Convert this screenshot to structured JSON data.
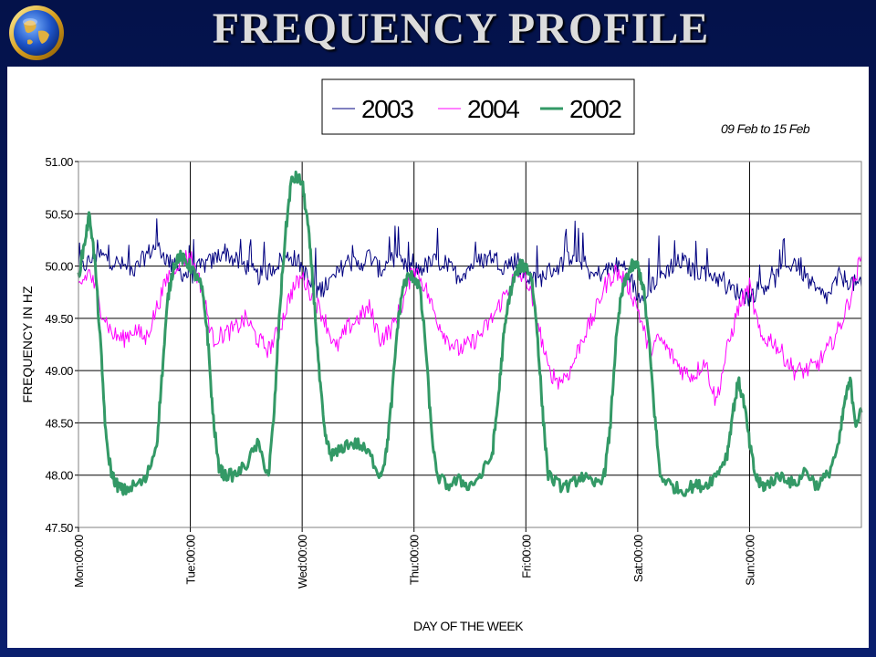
{
  "slide": {
    "title": "FREQUENCY PROFILE",
    "logo_icon": "globe-icon"
  },
  "chart_data": {
    "type": "line",
    "title": "",
    "subtitle": "09 Feb to 15 Feb",
    "xlabel": "DAY OF THE WEEK",
    "ylabel": "FREQUENCY IN HZ",
    "ylim": [
      47.5,
      51.0
    ],
    "yticks": [
      "47.50",
      "48.00",
      "48.50",
      "49.00",
      "49.50",
      "50.00",
      "50.50",
      "51.00"
    ],
    "xlim": [
      0,
      7
    ],
    "xtick_labels": [
      "Mon:00:00",
      "Tue:00:00",
      "Wed:00:00",
      "Thu:00:00",
      "Fri:00:00",
      "Sat:00:00",
      "Sun:00:00"
    ],
    "grid": true,
    "legend_position": "top-center",
    "x_unit": "days since Mon 00:00",
    "series": [
      {
        "name": "2003",
        "color": "#000080",
        "line_width": 1,
        "x": [
          0,
          0.1,
          0.2,
          0.3,
          0.4,
          0.5,
          0.6,
          0.7,
          0.8,
          0.9,
          1.0,
          1.1,
          1.2,
          1.3,
          1.4,
          1.5,
          1.6,
          1.7,
          1.8,
          1.9,
          2.0,
          2.1,
          2.2,
          2.3,
          2.4,
          2.5,
          2.6,
          2.7,
          2.8,
          2.9,
          3.0,
          3.1,
          3.2,
          3.3,
          3.4,
          3.5,
          3.6,
          3.7,
          3.8,
          3.9,
          4.0,
          4.1,
          4.2,
          4.3,
          4.4,
          4.5,
          4.6,
          4.7,
          4.8,
          4.9,
          5.0,
          5.1,
          5.2,
          5.3,
          5.4,
          5.5,
          5.6,
          5.7,
          5.8,
          5.9,
          6.0,
          6.1,
          6.2,
          6.3,
          6.4,
          6.5,
          6.6,
          6.7,
          6.8,
          6.9,
          7.0
        ],
        "values": [
          49.95,
          50.05,
          50.1,
          50.05,
          50.0,
          49.95,
          50.1,
          50.2,
          50.05,
          49.95,
          49.9,
          50.0,
          50.05,
          50.15,
          50.05,
          50.0,
          49.9,
          49.95,
          50.05,
          50.1,
          50.0,
          49.75,
          49.8,
          49.9,
          50.05,
          50.0,
          50.1,
          49.95,
          50.1,
          50.0,
          49.95,
          50.0,
          50.05,
          50.0,
          49.9,
          50.0,
          50.05,
          50.1,
          50.0,
          50.05,
          49.9,
          49.85,
          49.95,
          50.0,
          50.1,
          50.05,
          49.9,
          49.95,
          50.0,
          50.0,
          49.7,
          49.8,
          49.9,
          50.0,
          50.05,
          49.95,
          49.95,
          49.9,
          49.8,
          49.75,
          49.7,
          49.8,
          49.85,
          49.95,
          50.05,
          49.9,
          49.75,
          49.7,
          49.9,
          49.85,
          49.8
        ]
      },
      {
        "name": "2004",
        "color": "#ff00ff",
        "line_width": 1,
        "x": [
          0,
          0.1,
          0.2,
          0.3,
          0.4,
          0.5,
          0.6,
          0.7,
          0.8,
          0.9,
          1.0,
          1.1,
          1.2,
          1.3,
          1.4,
          1.5,
          1.6,
          1.7,
          1.8,
          1.9,
          2.0,
          2.1,
          2.2,
          2.3,
          2.4,
          2.5,
          2.6,
          2.7,
          2.8,
          2.9,
          3.0,
          3.1,
          3.2,
          3.3,
          3.4,
          3.5,
          3.6,
          3.7,
          3.8,
          3.9,
          4.0,
          4.1,
          4.2,
          4.3,
          4.4,
          4.5,
          4.6,
          4.7,
          4.8,
          4.9,
          5.0,
          5.1,
          5.2,
          5.3,
          5.4,
          5.5,
          5.6,
          5.7,
          5.8,
          5.9,
          6.0,
          6.1,
          6.2,
          6.3,
          6.4,
          6.5,
          6.6,
          6.7,
          6.8,
          6.9,
          7.0
        ],
        "values": [
          49.8,
          49.95,
          49.6,
          49.35,
          49.3,
          49.4,
          49.3,
          49.6,
          49.9,
          50.05,
          50.1,
          49.8,
          49.3,
          49.35,
          49.4,
          49.5,
          49.3,
          49.2,
          49.4,
          49.75,
          49.9,
          49.7,
          49.5,
          49.2,
          49.4,
          49.5,
          49.6,
          49.3,
          49.4,
          49.65,
          50.0,
          49.8,
          49.5,
          49.3,
          49.2,
          49.25,
          49.35,
          49.5,
          49.7,
          49.9,
          49.9,
          49.5,
          49.0,
          48.9,
          49.0,
          49.3,
          49.5,
          49.8,
          49.95,
          49.85,
          49.6,
          49.2,
          49.3,
          49.15,
          49.0,
          48.95,
          49.1,
          48.7,
          49.2,
          49.6,
          49.8,
          49.3,
          49.3,
          49.15,
          49.0,
          49.0,
          49.05,
          49.2,
          49.4,
          49.7,
          50.1
        ]
      },
      {
        "name": "2002",
        "color": "#339966",
        "line_width": 3,
        "x": [
          0,
          0.05,
          0.1,
          0.15,
          0.2,
          0.25,
          0.3,
          0.35,
          0.4,
          0.5,
          0.6,
          0.7,
          0.75,
          0.8,
          0.85,
          0.9,
          0.95,
          1.0,
          1.05,
          1.1,
          1.15,
          1.2,
          1.25,
          1.3,
          1.4,
          1.5,
          1.6,
          1.7,
          1.75,
          1.8,
          1.85,
          1.9,
          1.95,
          2.0,
          2.05,
          2.1,
          2.15,
          2.2,
          2.25,
          2.3,
          2.4,
          2.5,
          2.6,
          2.7,
          2.75,
          2.8,
          2.85,
          2.9,
          2.95,
          3.0,
          3.05,
          3.1,
          3.15,
          3.2,
          3.3,
          3.4,
          3.5,
          3.6,
          3.7,
          3.75,
          3.8,
          3.85,
          3.9,
          3.95,
          4.0,
          4.05,
          4.1,
          4.15,
          4.2,
          4.3,
          4.4,
          4.5,
          4.6,
          4.7,
          4.75,
          4.8,
          4.85,
          4.9,
          4.95,
          5.0,
          5.05,
          5.1,
          5.15,
          5.2,
          5.3,
          5.4,
          5.5,
          5.6,
          5.7,
          5.8,
          5.85,
          5.9,
          5.95,
          6.0,
          6.05,
          6.1,
          6.15,
          6.2,
          6.3,
          6.4,
          6.5,
          6.6,
          6.7,
          6.8,
          6.85,
          6.9,
          6.95,
          7.0
        ],
        "values": [
          49.9,
          50.2,
          50.5,
          50.0,
          49.2,
          48.3,
          48.0,
          47.9,
          47.85,
          47.9,
          47.95,
          48.3,
          49.0,
          49.7,
          50.0,
          50.1,
          50.05,
          50.0,
          49.9,
          49.8,
          49.4,
          48.6,
          48.1,
          48.0,
          48.0,
          48.1,
          48.3,
          48.0,
          48.6,
          49.6,
          50.3,
          50.8,
          50.85,
          50.8,
          50.4,
          49.8,
          49.0,
          48.4,
          48.2,
          48.2,
          48.3,
          48.3,
          48.2,
          48.0,
          48.2,
          48.7,
          49.4,
          49.8,
          49.9,
          49.9,
          49.8,
          49.3,
          48.5,
          48.0,
          47.9,
          47.95,
          47.9,
          48.0,
          48.2,
          48.7,
          49.3,
          49.7,
          49.9,
          50.0,
          50.0,
          49.9,
          49.4,
          48.6,
          48.0,
          47.9,
          47.9,
          48.0,
          47.9,
          48.0,
          48.4,
          49.2,
          49.7,
          49.9,
          50.0,
          50.0,
          49.8,
          49.3,
          48.6,
          48.0,
          47.9,
          47.85,
          47.9,
          47.9,
          48.0,
          48.2,
          48.6,
          48.9,
          48.7,
          48.3,
          48.0,
          47.9,
          47.9,
          47.95,
          48.0,
          47.9,
          48.05,
          47.9,
          48.0,
          48.3,
          48.7,
          48.9,
          48.5,
          48.6
        ]
      }
    ]
  }
}
